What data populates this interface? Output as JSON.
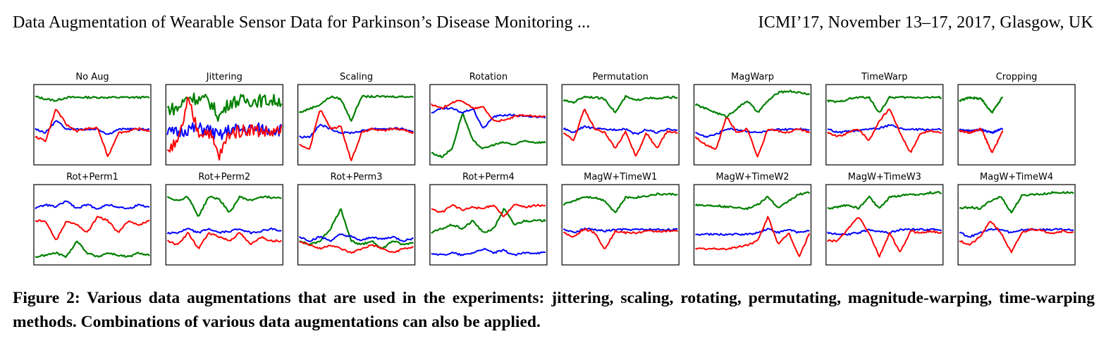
{
  "header": {
    "left": "Data Augmentation of Wearable Sensor Data for Parkinson’s Disease Monitoring ...",
    "right": "ICMI’17, November 13–17, 2017, Glasgow, UK"
  },
  "figure": {
    "colors": {
      "series_a": "#0000ff",
      "series_b": "#008000",
      "series_c": "#ff0000"
    },
    "panels": [
      {
        "title": "No Aug",
        "traces": {
          "green": [
            0.85,
            0.82,
            0.8,
            0.84,
            0.84,
            0.84,
            0.84,
            0.84,
            0.84,
            0.84,
            0.84,
            0.84
          ],
          "red": [
            0.35,
            0.3,
            0.7,
            0.5,
            0.42,
            0.45,
            0.46,
            0.1,
            0.4,
            0.42,
            0.45,
            0.42
          ],
          "blue": [
            0.45,
            0.4,
            0.55,
            0.45,
            0.45,
            0.44,
            0.45,
            0.38,
            0.44,
            0.45,
            0.44,
            0.44
          ]
        }
      },
      {
        "title": "Jittering",
        "jitter": 0.08,
        "traces": {
          "green": [
            0.7,
            0.7,
            0.85,
            0.82,
            0.8,
            0.6,
            0.78,
            0.8,
            0.8,
            0.8,
            0.8,
            0.8
          ],
          "red": [
            0.2,
            0.25,
            0.8,
            0.4,
            0.42,
            0.1,
            0.4,
            0.42,
            0.45,
            0.42,
            0.4,
            0.42
          ],
          "blue": [
            0.4,
            0.4,
            0.45,
            0.45,
            0.44,
            0.35,
            0.44,
            0.44,
            0.44,
            0.45,
            0.44,
            0.44
          ]
        }
      },
      {
        "title": "Scaling",
        "traces": {
          "green": [
            0.65,
            0.7,
            0.75,
            0.85,
            0.82,
            0.55,
            0.85,
            0.85,
            0.85,
            0.85,
            0.85,
            0.85
          ],
          "red": [
            0.25,
            0.2,
            0.7,
            0.45,
            0.48,
            0.05,
            0.4,
            0.45,
            0.42,
            0.45,
            0.44,
            0.4
          ],
          "blue": [
            0.35,
            0.35,
            0.5,
            0.45,
            0.4,
            0.4,
            0.42,
            0.45,
            0.45,
            0.45,
            0.45,
            0.4
          ]
        }
      },
      {
        "title": "Rotation",
        "traces": {
          "green": [
            0.15,
            0.1,
            0.2,
            0.65,
            0.3,
            0.2,
            0.25,
            0.28,
            0.25,
            0.3,
            0.28,
            0.28
          ],
          "red": [
            0.75,
            0.7,
            0.78,
            0.8,
            0.7,
            0.72,
            0.55,
            0.55,
            0.6,
            0.62,
            0.6,
            0.6
          ],
          "blue": [
            0.65,
            0.7,
            0.7,
            0.65,
            0.7,
            0.45,
            0.6,
            0.62,
            0.62,
            0.6,
            0.6,
            0.6
          ]
        }
      },
      {
        "title": "Permutation",
        "traces": {
          "green": [
            0.8,
            0.78,
            0.85,
            0.84,
            0.82,
            0.65,
            0.85,
            0.8,
            0.84,
            0.82,
            0.84,
            0.84
          ],
          "red": [
            0.4,
            0.3,
            0.7,
            0.45,
            0.4,
            0.2,
            0.42,
            0.1,
            0.4,
            0.2,
            0.42,
            0.4
          ],
          "blue": [
            0.45,
            0.4,
            0.48,
            0.45,
            0.44,
            0.44,
            0.45,
            0.38,
            0.44,
            0.4,
            0.44,
            0.44
          ]
        }
      },
      {
        "title": "MagWarp",
        "traces": {
          "green": [
            0.75,
            0.7,
            0.65,
            0.6,
            0.7,
            0.8,
            0.65,
            0.8,
            0.9,
            0.92,
            0.9,
            0.88
          ],
          "red": [
            0.35,
            0.25,
            0.2,
            0.6,
            0.4,
            0.45,
            0.1,
            0.45,
            0.42,
            0.4,
            0.45,
            0.4
          ],
          "blue": [
            0.4,
            0.35,
            0.38,
            0.45,
            0.44,
            0.42,
            0.4,
            0.42,
            0.44,
            0.44,
            0.45,
            0.44
          ]
        }
      },
      {
        "title": "TimeWarp",
        "traces": {
          "green": [
            0.8,
            0.78,
            0.82,
            0.84,
            0.84,
            0.65,
            0.84,
            0.84,
            0.84,
            0.84,
            0.84,
            0.84
          ],
          "red": [
            0.4,
            0.35,
            0.4,
            0.45,
            0.3,
            0.55,
            0.7,
            0.4,
            0.15,
            0.4,
            0.42,
            0.4
          ],
          "blue": [
            0.45,
            0.4,
            0.42,
            0.42,
            0.45,
            0.45,
            0.5,
            0.45,
            0.44,
            0.44,
            0.44,
            0.44
          ]
        }
      },
      {
        "title": "Cropping",
        "cropped": 0.38,
        "traces": {
          "green": [
            0.8,
            0.84,
            0.82,
            0.65,
            0.85
          ],
          "red": [
            0.42,
            0.4,
            0.45,
            0.15,
            0.42
          ],
          "blue": [
            0.44,
            0.42,
            0.44,
            0.4,
            0.45
          ]
        }
      },
      {
        "title": "Rot+Perm1",
        "traces": {
          "green": [
            0.1,
            0.12,
            0.15,
            0.1,
            0.3,
            0.15,
            0.1,
            0.15,
            0.12,
            0.1,
            0.15,
            0.12
          ],
          "red": [
            0.55,
            0.55,
            0.3,
            0.55,
            0.5,
            0.4,
            0.6,
            0.55,
            0.4,
            0.55,
            0.5,
            0.55
          ],
          "blue": [
            0.7,
            0.75,
            0.72,
            0.8,
            0.7,
            0.75,
            0.7,
            0.75,
            0.72,
            0.7,
            0.75,
            0.72
          ]
        }
      },
      {
        "title": "Rot+Perm2",
        "traces": {
          "green": [
            0.85,
            0.8,
            0.85,
            0.6,
            0.85,
            0.82,
            0.65,
            0.85,
            0.8,
            0.85,
            0.84,
            0.84
          ],
          "red": [
            0.3,
            0.25,
            0.4,
            0.2,
            0.4,
            0.35,
            0.3,
            0.4,
            0.25,
            0.35,
            0.3,
            0.3
          ],
          "blue": [
            0.4,
            0.4,
            0.45,
            0.4,
            0.45,
            0.4,
            0.42,
            0.45,
            0.4,
            0.42,
            0.45,
            0.42
          ]
        }
      },
      {
        "title": "Rot+Perm3",
        "traces": {
          "green": [
            0.3,
            0.25,
            0.3,
            0.45,
            0.7,
            0.3,
            0.25,
            0.3,
            0.2,
            0.3,
            0.25,
            0.28
          ],
          "red": [
            0.3,
            0.25,
            0.2,
            0.25,
            0.2,
            0.15,
            0.2,
            0.25,
            0.2,
            0.15,
            0.2,
            0.22
          ],
          "blue": [
            0.35,
            0.3,
            0.35,
            0.3,
            0.38,
            0.35,
            0.3,
            0.35,
            0.32,
            0.35,
            0.3,
            0.33
          ]
        }
      },
      {
        "title": "Rot+Perm4",
        "traces": {
          "green": [
            0.4,
            0.45,
            0.5,
            0.45,
            0.55,
            0.4,
            0.45,
            0.7,
            0.5,
            0.55,
            0.55,
            0.55
          ],
          "red": [
            0.7,
            0.65,
            0.75,
            0.68,
            0.72,
            0.7,
            0.75,
            0.6,
            0.75,
            0.72,
            0.74,
            0.74
          ],
          "blue": [
            0.15,
            0.12,
            0.15,
            0.12,
            0.15,
            0.2,
            0.15,
            0.18,
            0.12,
            0.15,
            0.15,
            0.15
          ]
        }
      },
      {
        "title": "MagW+TimeW1",
        "traces": {
          "green": [
            0.75,
            0.8,
            0.85,
            0.84,
            0.8,
            0.65,
            0.84,
            0.84,
            0.86,
            0.88,
            0.88,
            0.88
          ],
          "red": [
            0.4,
            0.35,
            0.45,
            0.4,
            0.2,
            0.42,
            0.4,
            0.4,
            0.42,
            0.42,
            0.42,
            0.42
          ],
          "blue": [
            0.44,
            0.4,
            0.45,
            0.44,
            0.42,
            0.44,
            0.44,
            0.44,
            0.44,
            0.44,
            0.44,
            0.44
          ]
        }
      },
      {
        "title": "MagW+TimeW2",
        "traces": {
          "green": [
            0.75,
            0.74,
            0.74,
            0.72,
            0.72,
            0.7,
            0.75,
            0.85,
            0.7,
            0.8,
            0.88,
            0.9
          ],
          "red": [
            0.2,
            0.2,
            0.2,
            0.2,
            0.22,
            0.25,
            0.3,
            0.6,
            0.25,
            0.4,
            0.1,
            0.4
          ],
          "blue": [
            0.38,
            0.38,
            0.38,
            0.38,
            0.38,
            0.38,
            0.4,
            0.45,
            0.4,
            0.44,
            0.4,
            0.44
          ]
        }
      },
      {
        "title": "MagW+TimeW3",
        "traces": {
          "green": [
            0.7,
            0.72,
            0.75,
            0.7,
            0.85,
            0.7,
            0.84,
            0.86,
            0.88,
            0.88,
            0.9,
            0.9
          ],
          "red": [
            0.3,
            0.3,
            0.45,
            0.6,
            0.4,
            0.1,
            0.4,
            0.15,
            0.42,
            0.4,
            0.42,
            0.4
          ],
          "blue": [
            0.4,
            0.38,
            0.38,
            0.4,
            0.44,
            0.42,
            0.4,
            0.44,
            0.44,
            0.44,
            0.44,
            0.44
          ]
        }
      },
      {
        "title": "MagW+TimeW4",
        "traces": {
          "green": [
            0.7,
            0.72,
            0.7,
            0.8,
            0.85,
            0.65,
            0.86,
            0.88,
            0.88,
            0.9,
            0.9,
            0.9
          ],
          "red": [
            0.3,
            0.25,
            0.35,
            0.55,
            0.4,
            0.15,
            0.4,
            0.45,
            0.42,
            0.4,
            0.42,
            0.4
          ],
          "blue": [
            0.4,
            0.35,
            0.4,
            0.44,
            0.44,
            0.4,
            0.44,
            0.44,
            0.44,
            0.44,
            0.44,
            0.44
          ]
        }
      }
    ]
  },
  "caption": "Figure 2: Various data augmentations that are used in the experiments: jittering, scaling, rotating, permutating, magnitude-warping, time-warping methods. Combinations of various data augmentations can also be applied."
}
